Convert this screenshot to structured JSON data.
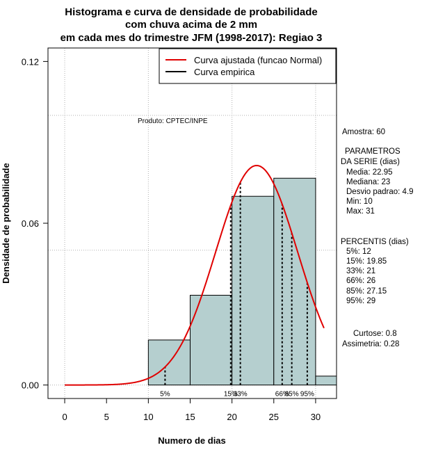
{
  "chart_data": {
    "type": "bar",
    "title_lines": [
      "Histograma e curva de densidade de probabilidade",
      "com chuva acima de 2 mm",
      "em cada mes do trimestre JFM (1998-2017): Regiao 3"
    ],
    "xlabel": "Numero de dias",
    "ylabel": "Densidade de probabilidade",
    "xlim": [
      -2,
      32.5
    ],
    "ylim": [
      -0.005,
      0.125
    ],
    "x_ticks": [
      {
        "value": 0,
        "label": "0"
      },
      {
        "value": 5,
        "label": "5"
      },
      {
        "value": 10,
        "label": "10"
      },
      {
        "value": 15,
        "label": "15"
      },
      {
        "value": 20,
        "label": "20"
      },
      {
        "value": 25,
        "label": "25"
      },
      {
        "value": 30,
        "label": "30"
      }
    ],
    "y_ticks": [
      {
        "value": 0.0,
        "label": "0.00"
      },
      {
        "value": 0.06,
        "label": "0.06"
      },
      {
        "value": 0.12,
        "label": "0.12"
      }
    ],
    "grid_x": [
      0,
      10,
      20,
      30
    ],
    "grid_y": [
      0,
      0.05,
      0.1
    ],
    "grid": true,
    "bins": [
      {
        "x0": 10,
        "x1": 15,
        "density": 0.0167
      },
      {
        "x0": 15,
        "x1": 20,
        "density": 0.0333
      },
      {
        "x0": 20,
        "x1": 25,
        "density": 0.07
      },
      {
        "x0": 25,
        "x1": 30,
        "density": 0.0767
      },
      {
        "x0": 30,
        "x1": 35,
        "density": 0.0033
      }
    ],
    "normal_curve": {
      "mean": 22.95,
      "sd": 4.9,
      "x_from": 0,
      "x_to": 31
    },
    "percentile_lines": [
      {
        "x": 12,
        "label": "5%"
      },
      {
        "x": 19.85,
        "label": "15%"
      },
      {
        "x": 21,
        "label": "33%"
      },
      {
        "x": 26,
        "label": "66%"
      },
      {
        "x": 27.15,
        "label": "85%"
      },
      {
        "x": 29,
        "label": "95%"
      }
    ],
    "legend": {
      "position": "top-right",
      "entries": [
        {
          "label": "Curva ajustada (funcao Normal)",
          "color": "#e00000"
        },
        {
          "label": "Curva empirica",
          "color": "#000000"
        }
      ]
    },
    "colors": {
      "bar_fill": "#b5cfcf",
      "curve": "#e00000",
      "grid": "#b0b0b0"
    },
    "annotation": "Produto: CPTEC/INPE",
    "stats_lines": [
      "Amostra: 60",
      "PARAMETROS",
      "DA SERIE (dias)",
      "Media: 22.95",
      "Mediana: 23",
      "Desvio padrao: 4.9",
      "Min: 10",
      "Max: 31",
      "PERCENTIS (dias)",
      "5%: 12",
      "15%: 19.85",
      "33%: 21",
      "66%: 26",
      "85%: 27.15",
      "95%: 29",
      "Curtose: 0.8",
      "Assimetria: 0.28"
    ]
  }
}
